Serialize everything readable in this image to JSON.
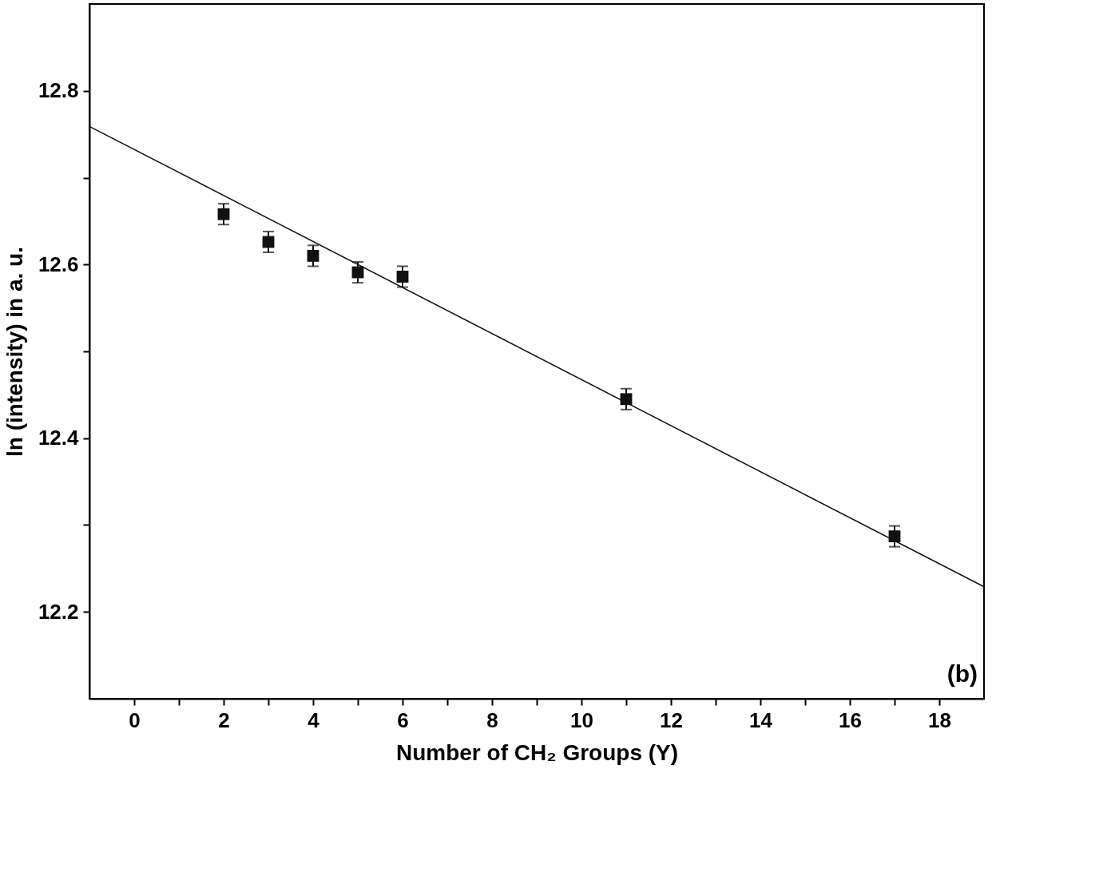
{
  "chart_data": {
    "type": "scatter",
    "xlabel": "Number of CH₂ Groups (Y)",
    "ylabel": "ln (intensity) in a. u.",
    "xlim": [
      -1,
      19
    ],
    "ylim": [
      12.1,
      12.9
    ],
    "xticks": [
      0,
      {
        "value": 1,
        "label": null
      },
      2,
      {
        "value": 3,
        "label": null
      },
      4,
      {
        "value": 5,
        "label": null
      },
      6,
      {
        "value": 7,
        "label": null
      },
      8,
      {
        "value": 9,
        "label": null
      },
      10,
      {
        "value": 11,
        "label": null
      },
      12,
      {
        "value": 13,
        "label": null
      },
      14,
      {
        "value": 15,
        "label": null
      },
      16,
      {
        "value": 17,
        "label": null
      },
      18
    ],
    "yticks": [
      12.2,
      {
        "value": 12.3,
        "label": null
      },
      12.4,
      {
        "value": 12.5,
        "label": null
      },
      12.6,
      {
        "value": 12.7,
        "label": null
      },
      12.8
    ],
    "grid": false,
    "series": [
      {
        "color": "#111111",
        "marker": "square",
        "x": [
          2,
          3,
          4,
          5,
          6,
          11,
          17
        ],
        "values": [
          12.658,
          12.626,
          12.61,
          12.591,
          12.586,
          12.445,
          12.287
        ],
        "errors": [
          0.012,
          0.012,
          0.012,
          0.012,
          0.012,
          0.012,
          0.012
        ]
      },
      {
        "type": "line",
        "color": "#111111",
        "x": [
          -1,
          19
        ],
        "values": [
          12.759,
          12.229
        ]
      }
    ],
    "annotations": [
      "(b)"
    ]
  }
}
